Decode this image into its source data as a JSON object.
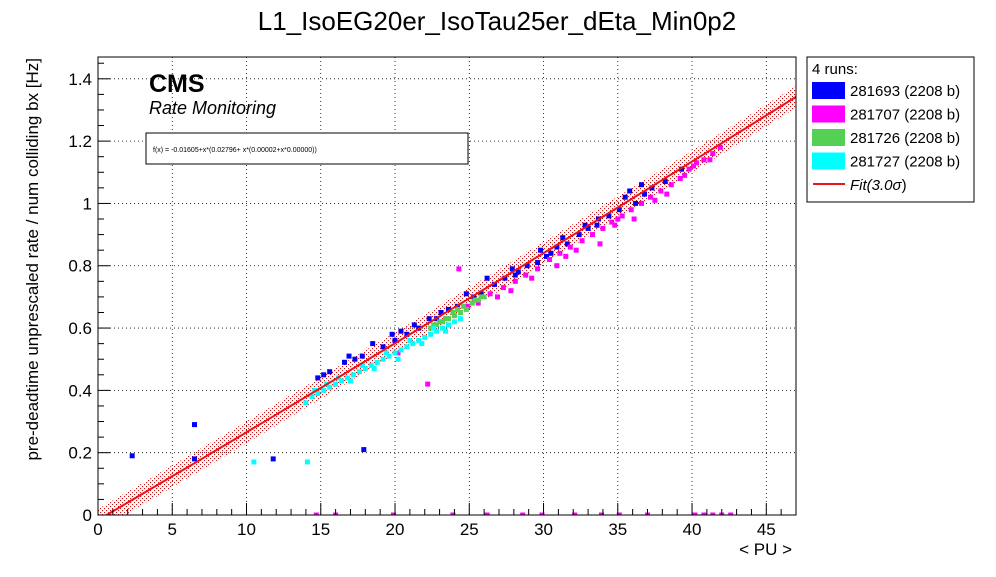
{
  "chart_data": {
    "type": "scatter",
    "title": "L1_IsoEG20er_IsoTau25er_dEta_Min0p2",
    "xlabel": "< PU >",
    "ylabel": "pre-deadtime unprescaled rate / num colliding bx [Hz]",
    "xlim": [
      0,
      47
    ],
    "ylim": [
      0,
      1.47
    ],
    "xticks": [
      0,
      5,
      10,
      15,
      20,
      25,
      30,
      35,
      40,
      45
    ],
    "xtick_labels": [
      "0",
      "5",
      "10",
      "15",
      "20",
      "25",
      "30",
      "35",
      "40",
      "45"
    ],
    "yticks": [
      0,
      0.2,
      0.4,
      0.6,
      0.8,
      1.0,
      1.2,
      1.4
    ],
    "ytick_labels": [
      "0",
      "0.2",
      "0.4",
      "0.6",
      "0.8",
      "1",
      "1.2",
      "1.4"
    ],
    "grid": true,
    "legend_position": "outside-right-top",
    "legend_header": "4 runs:",
    "cms_label": "CMS",
    "cms_sublabel": "Rate Monitoring",
    "fit_formula": "f(x) = -0.01605+x*(0.02796+ x*(0.00002+x*0.00000))",
    "fit": {
      "name": "Fit(3.0σ)",
      "name_prefix": "Fit(3.0",
      "name_sigma": "σ",
      "name_suffix": ")",
      "color": "#e8141c",
      "coefficients": [
        -0.01605,
        0.02796,
        2e-05,
        0.0
      ],
      "band_halfwidth": 0.035
    },
    "series": [
      {
        "name": "281693 (2208 b)",
        "color": "#0000ff",
        "points": [
          [
            2.3,
            0.19
          ],
          [
            6.5,
            0.29
          ],
          [
            6.5,
            0.18
          ],
          [
            11.8,
            0.18
          ],
          [
            17.9,
            0.21
          ],
          [
            14.8,
            0.44
          ],
          [
            15.6,
            0.46
          ],
          [
            16.6,
            0.49
          ],
          [
            17.8,
            0.51
          ],
          [
            19.2,
            0.54
          ],
          [
            20.0,
            0.56
          ],
          [
            20.8,
            0.58
          ],
          [
            21.6,
            0.6
          ],
          [
            22.8,
            0.63
          ],
          [
            23.6,
            0.66
          ],
          [
            24.2,
            0.67
          ],
          [
            25.3,
            0.7
          ],
          [
            25.8,
            0.71
          ],
          [
            26.7,
            0.74
          ],
          [
            27.4,
            0.76
          ],
          [
            28.3,
            0.78
          ],
          [
            28.9,
            0.8
          ],
          [
            29.6,
            0.81
          ],
          [
            30.5,
            0.84
          ],
          [
            30.9,
            0.86
          ],
          [
            31.6,
            0.87
          ],
          [
            32.4,
            0.9
          ],
          [
            33.0,
            0.92
          ],
          [
            33.6,
            0.93
          ],
          [
            34.4,
            0.96
          ],
          [
            35.1,
            0.98
          ],
          [
            35.5,
            1.02
          ],
          [
            36.2,
            1.0
          ],
          [
            36.8,
            1.03
          ],
          [
            37.3,
            1.05
          ],
          [
            38.2,
            1.07
          ],
          [
            39.3,
            1.11
          ],
          [
            29.8,
            0.85
          ],
          [
            33.7,
            0.95
          ],
          [
            27.9,
            0.79
          ],
          [
            18.5,
            0.55
          ],
          [
            22.3,
            0.63
          ],
          [
            16.9,
            0.51
          ],
          [
            20.4,
            0.59
          ],
          [
            31.3,
            0.89
          ],
          [
            35.8,
            1.04
          ],
          [
            26.2,
            0.76
          ],
          [
            24.8,
            0.71
          ],
          [
            19.8,
            0.58
          ],
          [
            15.2,
            0.45
          ],
          [
            32.8,
            0.93
          ],
          [
            30.2,
            0.83
          ],
          [
            36.6,
            1.06
          ],
          [
            28.1,
            0.77
          ],
          [
            23.1,
            0.65
          ],
          [
            17.3,
            0.5
          ],
          [
            21.3,
            0.61
          ]
        ]
      },
      {
        "name": "281707 (2208 b)",
        "color": "#ff00ff",
        "points": [
          [
            25.6,
            0.68
          ],
          [
            26.4,
            0.71
          ],
          [
            27.3,
            0.73
          ],
          [
            28.1,
            0.75
          ],
          [
            28.8,
            0.77
          ],
          [
            29.6,
            0.79
          ],
          [
            30.4,
            0.82
          ],
          [
            31.1,
            0.84
          ],
          [
            31.8,
            0.86
          ],
          [
            32.6,
            0.88
          ],
          [
            33.3,
            0.9
          ],
          [
            34.0,
            0.92
          ],
          [
            34.6,
            0.94
          ],
          [
            35.3,
            0.96
          ],
          [
            35.9,
            0.98
          ],
          [
            36.6,
            1.0
          ],
          [
            37.2,
            1.02
          ],
          [
            37.9,
            1.04
          ],
          [
            38.6,
            1.06
          ],
          [
            39.2,
            1.08
          ],
          [
            39.8,
            1.11
          ],
          [
            40.3,
            1.13
          ],
          [
            40.8,
            1.14
          ],
          [
            41.4,
            1.16
          ],
          [
            41.9,
            1.18
          ],
          [
            24.9,
            0.67
          ],
          [
            27.8,
            0.72
          ],
          [
            30.9,
            0.8
          ],
          [
            33.8,
            0.87
          ],
          [
            36.1,
            0.95
          ],
          [
            38.3,
            1.03
          ],
          [
            40.1,
            1.12
          ],
          [
            26.9,
            0.7
          ],
          [
            29.2,
            0.76
          ],
          [
            32.2,
            0.85
          ],
          [
            34.8,
            0.93
          ],
          [
            37.5,
            1.01
          ],
          [
            39.5,
            1.09
          ],
          [
            24.3,
            0.79
          ],
          [
            20.2,
            0.52
          ],
          [
            22.2,
            0.42
          ],
          [
            14.7,
            0.0
          ],
          [
            16.0,
            0.0
          ],
          [
            19.9,
            0.0
          ],
          [
            23.9,
            0.0
          ],
          [
            26.2,
            0.0
          ],
          [
            28.6,
            0.0
          ],
          [
            29.9,
            0.0
          ],
          [
            32.1,
            0.0
          ],
          [
            33.9,
            0.0
          ],
          [
            35.1,
            0.0
          ],
          [
            37.0,
            0.0
          ],
          [
            40.2,
            0.0
          ],
          [
            40.8,
            0.0
          ],
          [
            41.4,
            0.0
          ],
          [
            42.0,
            0.0
          ],
          [
            42.6,
            0.0
          ],
          [
            41.2,
            1.14
          ],
          [
            35.0,
            0.95
          ],
          [
            31.5,
            0.83
          ]
        ]
      },
      {
        "name": "281726 (2208 b)",
        "color": "#54d154",
        "points": [
          [
            22.4,
            0.6
          ],
          [
            22.8,
            0.61
          ],
          [
            23.2,
            0.62
          ],
          [
            23.6,
            0.63
          ],
          [
            24.0,
            0.64
          ],
          [
            24.4,
            0.65
          ],
          [
            24.8,
            0.66
          ],
          [
            25.2,
            0.68
          ],
          [
            25.6,
            0.69
          ],
          [
            26.0,
            0.7
          ],
          [
            23.0,
            0.62
          ],
          [
            23.9,
            0.65
          ],
          [
            24.6,
            0.67
          ],
          [
            25.4,
            0.69
          ],
          [
            22.6,
            0.61
          ],
          [
            24.2,
            0.66
          ],
          [
            25.8,
            0.7
          ],
          [
            23.4,
            0.63
          ]
        ]
      },
      {
        "name": "281727 (2208 b)",
        "color": "#00ffff",
        "points": [
          [
            14.0,
            0.36
          ],
          [
            14.4,
            0.38
          ],
          [
            14.8,
            0.39
          ],
          [
            15.2,
            0.4
          ],
          [
            15.6,
            0.41
          ],
          [
            16.0,
            0.42
          ],
          [
            16.4,
            0.43
          ],
          [
            16.8,
            0.44
          ],
          [
            17.2,
            0.45
          ],
          [
            17.6,
            0.46
          ],
          [
            18.0,
            0.47
          ],
          [
            18.4,
            0.48
          ],
          [
            18.8,
            0.49
          ],
          [
            19.2,
            0.5
          ],
          [
            19.6,
            0.51
          ],
          [
            20.0,
            0.52
          ],
          [
            20.4,
            0.53
          ],
          [
            20.8,
            0.54
          ],
          [
            21.2,
            0.55
          ],
          [
            21.6,
            0.56
          ],
          [
            22.0,
            0.57
          ],
          [
            22.4,
            0.58
          ],
          [
            22.8,
            0.59
          ],
          [
            23.2,
            0.6
          ],
          [
            23.6,
            0.61
          ],
          [
            24.0,
            0.62
          ],
          [
            24.4,
            0.63
          ],
          [
            14.6,
            0.4
          ],
          [
            15.4,
            0.42
          ],
          [
            16.2,
            0.44
          ],
          [
            17.0,
            0.43
          ],
          [
            17.8,
            0.48
          ],
          [
            18.6,
            0.47
          ],
          [
            19.4,
            0.52
          ],
          [
            20.2,
            0.5
          ],
          [
            21.0,
            0.56
          ],
          [
            21.8,
            0.55
          ],
          [
            22.6,
            0.6
          ],
          [
            23.4,
            0.59
          ],
          [
            10.5,
            0.17
          ],
          [
            14.1,
            0.17
          ]
        ]
      }
    ]
  }
}
